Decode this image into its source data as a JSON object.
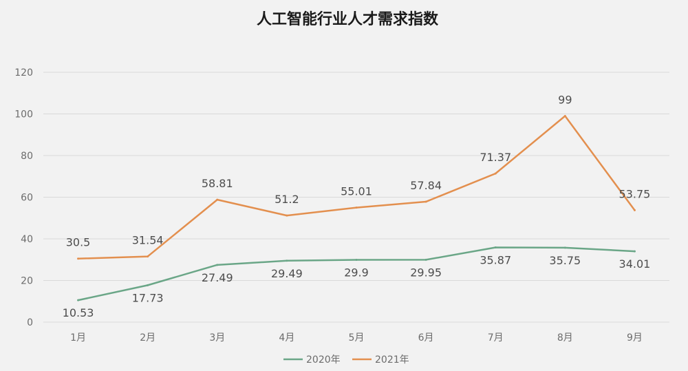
{
  "chart_data": {
    "type": "line",
    "title": "人工智能行业人才需求指数",
    "categories": [
      "1月",
      "2月",
      "3月",
      "4月",
      "5月",
      "6月",
      "7月",
      "8月",
      "9月"
    ],
    "series": [
      {
        "name": "2020年",
        "color": "#6aa687",
        "values": [
          10.53,
          17.73,
          27.49,
          29.49,
          29.9,
          29.95,
          35.87,
          35.75,
          34.01
        ],
        "labels": [
          "10.53",
          "17.73",
          "27.49",
          "29.49",
          "29.9",
          "29.95",
          "35.87",
          "35.75",
          "34.01"
        ]
      },
      {
        "name": "2021年",
        "color": "#e38f4e",
        "values": [
          30.5,
          31.54,
          58.81,
          51.2,
          55.01,
          57.84,
          71.37,
          99,
          53.75
        ],
        "labels": [
          "30.5",
          "31.54",
          "58.81",
          "51.2",
          "55.01",
          "57.84",
          "71.37",
          "99",
          "53.75"
        ]
      }
    ],
    "yticks": [
      "0",
      "20",
      "40",
      "60",
      "80",
      "100",
      "120"
    ],
    "ylim": [
      0,
      120
    ],
    "grid": true,
    "legend": "bottom"
  }
}
